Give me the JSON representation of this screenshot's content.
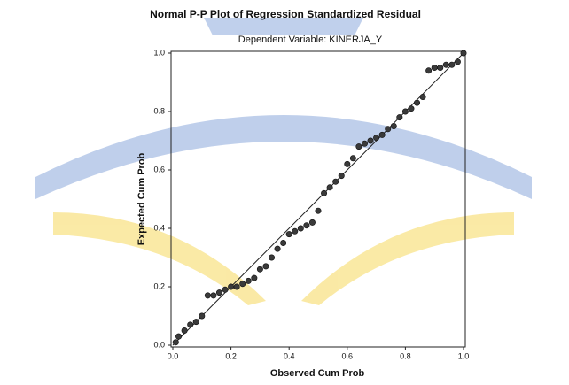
{
  "chart_data": {
    "type": "scatter",
    "title": "Normal P-P Plot of Regression Standardized Residual",
    "subtitle": "Dependent Variable: KINERJA_Y",
    "x_label": "Observed Cum Prob",
    "y_label": "Expected Cum Prob",
    "x": [
      0.01,
      0.02,
      0.04,
      0.06,
      0.08,
      0.1,
      0.12,
      0.14,
      0.16,
      0.18,
      0.2,
      0.22,
      0.24,
      0.26,
      0.28,
      0.3,
      0.32,
      0.34,
      0.36,
      0.38,
      0.4,
      0.42,
      0.44,
      0.46,
      0.48,
      0.5,
      0.52,
      0.54,
      0.56,
      0.58,
      0.6,
      0.62,
      0.64,
      0.66,
      0.68,
      0.7,
      0.72,
      0.74,
      0.76,
      0.78,
      0.8,
      0.82,
      0.84,
      0.86,
      0.88,
      0.9,
      0.92,
      0.94,
      0.96,
      0.98,
      1.0
    ],
    "values": [
      0.01,
      0.03,
      0.05,
      0.07,
      0.08,
      0.1,
      0.17,
      0.17,
      0.18,
      0.19,
      0.2,
      0.2,
      0.21,
      0.22,
      0.23,
      0.26,
      0.27,
      0.3,
      0.33,
      0.35,
      0.38,
      0.39,
      0.4,
      0.41,
      0.42,
      0.46,
      0.52,
      0.54,
      0.56,
      0.58,
      0.62,
      0.64,
      0.68,
      0.69,
      0.7,
      0.71,
      0.72,
      0.74,
      0.75,
      0.78,
      0.8,
      0.81,
      0.83,
      0.85,
      0.94,
      0.95,
      0.95,
      0.96,
      0.96,
      0.97,
      1.0
    ],
    "color": "#3a3a3a",
    "xlim": [
      0,
      1
    ],
    "ylim": [
      0,
      1
    ],
    "xticks": [
      {
        "value": 0,
        "label": "0.0"
      },
      0.2,
      0.4,
      0.6,
      0.8,
      {
        "value": 1,
        "label": "1.0"
      }
    ],
    "yticks": [
      {
        "value": 0,
        "label": "0.0"
      },
      0.2,
      0.4,
      0.6,
      0.8,
      {
        "value": 1,
        "label": "1.0"
      }
    ],
    "grid": false
  }
}
